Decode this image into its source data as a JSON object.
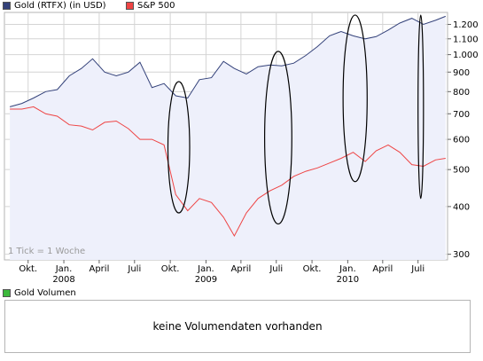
{
  "legend": {
    "gold_label": "Gold (RTFX) (in USD)",
    "sp_label": "S&P 500",
    "volume_label": "Gold Volumen"
  },
  "tick_note": "1 Tick = 1 Woche",
  "volume_message": "keine Volumendaten vorhanden",
  "colors": {
    "gold": "#34427a",
    "sp500": "#ee4444",
    "area_fill": "#eef0fb",
    "grid": "#d4d4d4",
    "ellipse": "#000000",
    "volume_swatch": "#3cb83c"
  },
  "chart_data": {
    "type": "line",
    "y_scale": "log",
    "ylim": [
      290,
      1290
    ],
    "y_ticks": [
      300,
      400,
      500,
      600,
      700,
      800,
      900,
      1000,
      1100,
      1200
    ],
    "y_tick_labels": [
      "300",
      "400",
      "500",
      "600",
      "700",
      "800",
      "900",
      "1.000",
      "1.100",
      "1.200"
    ],
    "x_ticks": [
      {
        "month": "2007-10",
        "label": "Okt.",
        "year": ""
      },
      {
        "month": "2008-01",
        "label": "Jan.",
        "year": "2008"
      },
      {
        "month": "2008-04",
        "label": "April",
        "year": ""
      },
      {
        "month": "2008-07",
        "label": "Juli",
        "year": ""
      },
      {
        "month": "2008-10",
        "label": "Okt.",
        "year": ""
      },
      {
        "month": "2009-01",
        "label": "Jan.",
        "year": "2009"
      },
      {
        "month": "2009-04",
        "label": "April",
        "year": ""
      },
      {
        "month": "2009-07",
        "label": "Juli",
        "year": ""
      },
      {
        "month": "2009-10",
        "label": "Okt.",
        "year": ""
      },
      {
        "month": "2010-01",
        "label": "Jan.",
        "year": "2010"
      },
      {
        "month": "2010-04",
        "label": "April",
        "year": ""
      },
      {
        "month": "2010-07",
        "label": "Juli",
        "year": ""
      }
    ],
    "series": [
      {
        "name": "Gold (RTFX) (in USD)",
        "points": [
          [
            "2007-08-15",
            730
          ],
          [
            "2007-09-15",
            745
          ],
          [
            "2007-10-15",
            770
          ],
          [
            "2007-11-15",
            800
          ],
          [
            "2007-12-15",
            810
          ],
          [
            "2008-01-15",
            880
          ],
          [
            "2008-02-15",
            920
          ],
          [
            "2008-03-15",
            975
          ],
          [
            "2008-04-15",
            900
          ],
          [
            "2008-05-15",
            880
          ],
          [
            "2008-06-15",
            900
          ],
          [
            "2008-07-15",
            955
          ],
          [
            "2008-08-15",
            820
          ],
          [
            "2008-09-15",
            840
          ],
          [
            "2008-10-15",
            780
          ],
          [
            "2008-11-15",
            770
          ],
          [
            "2008-12-15",
            860
          ],
          [
            "2009-01-15",
            870
          ],
          [
            "2009-02-15",
            960
          ],
          [
            "2009-03-15",
            920
          ],
          [
            "2009-04-15",
            890
          ],
          [
            "2009-05-15",
            930
          ],
          [
            "2009-06-15",
            940
          ],
          [
            "2009-07-15",
            935
          ],
          [
            "2009-08-15",
            950
          ],
          [
            "2009-09-15",
            995
          ],
          [
            "2009-10-15",
            1050
          ],
          [
            "2009-11-15",
            1120
          ],
          [
            "2009-12-15",
            1150
          ],
          [
            "2010-01-15",
            1120
          ],
          [
            "2010-02-15",
            1100
          ],
          [
            "2010-03-15",
            1115
          ],
          [
            "2010-04-15",
            1160
          ],
          [
            "2010-05-15",
            1210
          ],
          [
            "2010-06-15",
            1245
          ],
          [
            "2010-07-15",
            1200
          ],
          [
            "2010-08-15",
            1230
          ],
          [
            "2010-09-10",
            1260
          ]
        ]
      },
      {
        "name": "S&P 500",
        "points": [
          [
            "2007-08-15",
            720
          ],
          [
            "2007-09-15",
            720
          ],
          [
            "2007-10-15",
            730
          ],
          [
            "2007-11-15",
            700
          ],
          [
            "2007-12-15",
            690
          ],
          [
            "2008-01-15",
            655
          ],
          [
            "2008-02-15",
            650
          ],
          [
            "2008-03-15",
            635
          ],
          [
            "2008-04-15",
            665
          ],
          [
            "2008-05-15",
            670
          ],
          [
            "2008-06-15",
            640
          ],
          [
            "2008-07-15",
            600
          ],
          [
            "2008-08-15",
            600
          ],
          [
            "2008-09-15",
            580
          ],
          [
            "2008-10-15",
            430
          ],
          [
            "2008-11-15",
            390
          ],
          [
            "2008-12-15",
            420
          ],
          [
            "2009-01-15",
            410
          ],
          [
            "2009-02-15",
            375
          ],
          [
            "2009-03-15",
            335
          ],
          [
            "2009-04-15",
            385
          ],
          [
            "2009-05-15",
            420
          ],
          [
            "2009-06-15",
            440
          ],
          [
            "2009-07-15",
            455
          ],
          [
            "2009-08-15",
            480
          ],
          [
            "2009-09-15",
            495
          ],
          [
            "2009-10-15",
            505
          ],
          [
            "2009-11-15",
            520
          ],
          [
            "2009-12-15",
            535
          ],
          [
            "2010-01-15",
            555
          ],
          [
            "2010-02-15",
            525
          ],
          [
            "2010-03-15",
            560
          ],
          [
            "2010-04-15",
            580
          ],
          [
            "2010-05-15",
            555
          ],
          [
            "2010-06-15",
            515
          ],
          [
            "2010-07-15",
            510
          ],
          [
            "2010-08-15",
            530
          ],
          [
            "2010-09-10",
            535
          ]
        ]
      }
    ],
    "highlights": [
      {
        "start": "2008-09-25",
        "end": "2008-11-20",
        "low": 385,
        "high": 850
      },
      {
        "start": "2009-06-01",
        "end": "2009-08-10",
        "low": 360,
        "high": 1020
      },
      {
        "start": "2009-12-20",
        "end": "2010-02-20",
        "low": 465,
        "high": 1270
      },
      {
        "start": "2010-07-01",
        "end": "2010-07-15",
        "low": 420,
        "high": 1270
      }
    ]
  }
}
